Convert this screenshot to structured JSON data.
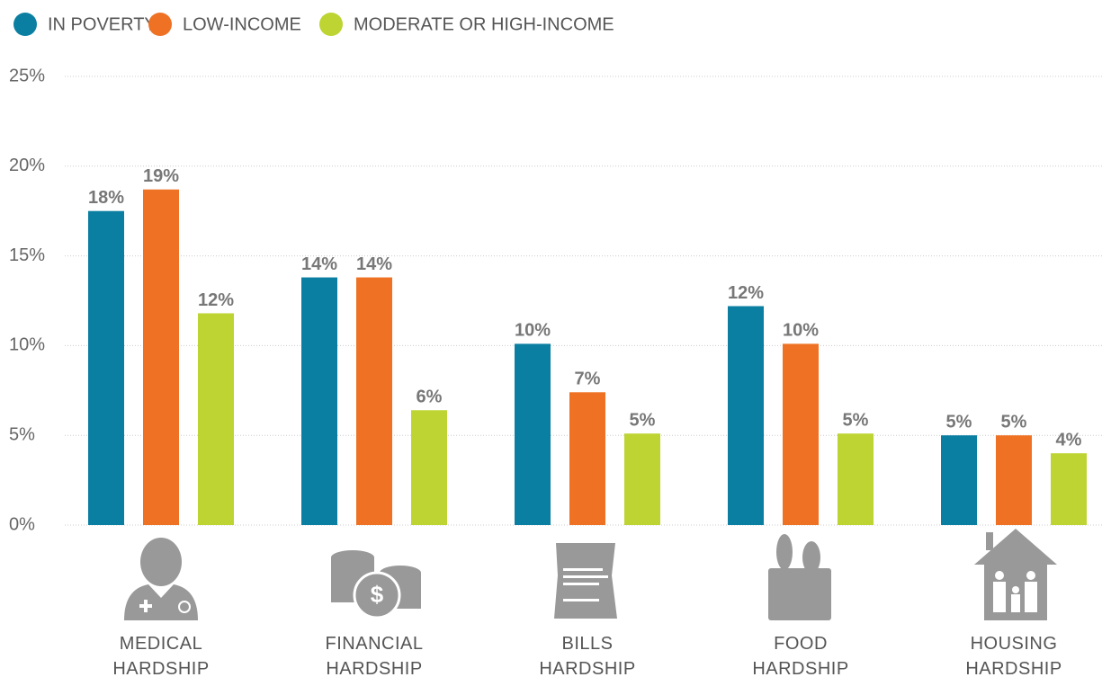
{
  "chart_data": {
    "type": "bar",
    "categories": [
      "MEDICAL HARDSHIP",
      "FINANCIAL HARDSHIP",
      "BILLS HARDSHIP",
      "FOOD HARDSHIP",
      "HOUSING HARDSHIP"
    ],
    "series": [
      {
        "name": "IN POVERTY",
        "color": "#0a7fa1",
        "values": [
          17.5,
          13.8,
          10.1,
          12.2,
          5.0
        ],
        "value_labels": [
          "18%",
          "14%",
          "10%",
          "12%",
          "5%"
        ]
      },
      {
        "name": "LOW-INCOME",
        "color": "#ee7124",
        "values": [
          18.7,
          13.8,
          7.4,
          10.1,
          5.0
        ],
        "value_labels": [
          "19%",
          "14%",
          "7%",
          "10%",
          "5%"
        ]
      },
      {
        "name": "MODERATE OR HIGH-INCOME",
        "color": "#bdd432",
        "values": [
          11.8,
          6.4,
          5.1,
          5.1,
          4.0
        ],
        "value_labels": [
          "12%",
          "6%",
          "5%",
          "5%",
          "4%"
        ]
      }
    ],
    "ylim": [
      0,
      25
    ],
    "yticks": [
      {
        "value": 0,
        "label": "0%"
      },
      {
        "value": 5,
        "label": "5%"
      },
      {
        "value": 10,
        "label": "10%"
      },
      {
        "value": 15,
        "label": "15%"
      },
      {
        "value": 20,
        "label": "20%"
      },
      {
        "value": 25,
        "label": "25%"
      }
    ],
    "grid": true,
    "legend": "top-left"
  }
}
